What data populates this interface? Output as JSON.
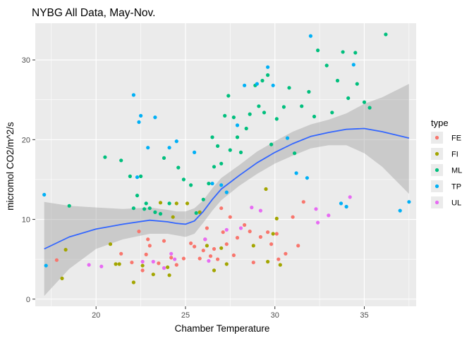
{
  "chart_data": {
    "type": "scatter",
    "title": "NYBG All Data, May-Nov.",
    "xlabel": "Chamber Temperature",
    "ylabel": "micromol CO2/m^2/s",
    "xlim": [
      16.6,
      37.9
    ],
    "ylim": [
      -0.9,
      34.6
    ],
    "x_ticks": [
      20,
      25,
      30,
      35
    ],
    "y_ticks": [
      0,
      10,
      20,
      30
    ],
    "grid": true,
    "panel_background": "#ebebeb",
    "legend": {
      "title": "type",
      "position": "right",
      "entries": [
        {
          "label": "FE",
          "color": "#F8766D"
        },
        {
          "label": "FI",
          "color": "#A3A500"
        },
        {
          "label": "ML",
          "color": "#00BF7D"
        },
        {
          "label": "TP",
          "color": "#00B0F6"
        },
        {
          "label": "UL",
          "color": "#E76BF3"
        }
      ]
    },
    "series": [
      {
        "name": "FE",
        "color": "#F8766D",
        "points": [
          [
            17.8,
            4.9
          ],
          [
            21.4,
            5.7
          ],
          [
            22.0,
            4.6
          ],
          [
            22.4,
            8.5
          ],
          [
            22.6,
            3.6
          ],
          [
            22.8,
            5.6
          ],
          [
            22.9,
            7.5
          ],
          [
            23.0,
            6.7
          ],
          [
            23.5,
            4.5
          ],
          [
            23.8,
            7.3
          ],
          [
            24.2,
            5.2
          ],
          [
            24.5,
            4.3
          ],
          [
            24.9,
            5.1
          ],
          [
            25.3,
            7.0
          ],
          [
            25.5,
            6.6
          ],
          [
            25.8,
            5.1
          ],
          [
            26.0,
            6.1
          ],
          [
            26.1,
            7.5
          ],
          [
            26.2,
            8.9
          ],
          [
            26.4,
            5.4
          ],
          [
            26.6,
            6.3
          ],
          [
            26.8,
            5.0
          ],
          [
            27.0,
            11.4
          ],
          [
            27.1,
            8.4
          ],
          [
            27.3,
            6.9
          ],
          [
            27.5,
            10.3
          ],
          [
            27.7,
            5.5
          ],
          [
            27.9,
            7.7
          ],
          [
            28.3,
            9.3
          ],
          [
            28.6,
            8.5
          ],
          [
            28.8,
            4.6
          ],
          [
            29.2,
            7.8
          ],
          [
            29.6,
            8.4
          ],
          [
            29.8,
            6.9
          ],
          [
            30.1,
            8.2
          ],
          [
            30.2,
            5.0
          ],
          [
            30.6,
            5.7
          ],
          [
            31.0,
            10.3
          ],
          [
            31.3,
            6.7
          ],
          [
            31.6,
            12.2
          ]
        ]
      },
      {
        "name": "FI",
        "color": "#A3A500",
        "points": [
          [
            18.1,
            2.6
          ],
          [
            18.3,
            6.2
          ],
          [
            20.8,
            6.9
          ],
          [
            21.1,
            4.4
          ],
          [
            21.3,
            4.4
          ],
          [
            22.1,
            2.1
          ],
          [
            22.6,
            4.2
          ],
          [
            23.2,
            3.1
          ],
          [
            23.6,
            12.1
          ],
          [
            24.0,
            4.0
          ],
          [
            24.1,
            3.0
          ],
          [
            24.3,
            10.3
          ],
          [
            24.5,
            12.0
          ],
          [
            25.1,
            12.0
          ],
          [
            25.8,
            10.9
          ],
          [
            26.2,
            6.7
          ],
          [
            26.6,
            3.6
          ],
          [
            27.0,
            6.4
          ],
          [
            27.3,
            4.4
          ],
          [
            28.8,
            6.7
          ],
          [
            29.5,
            13.8
          ],
          [
            29.6,
            4.7
          ],
          [
            29.9,
            8.2
          ],
          [
            30.1,
            10.1
          ],
          [
            30.3,
            4.3
          ]
        ]
      },
      {
        "name": "ML",
        "color": "#00BF7D",
        "points": [
          [
            18.5,
            11.7
          ],
          [
            20.5,
            17.8
          ],
          [
            21.4,
            17.4
          ],
          [
            21.9,
            15.4
          ],
          [
            22.1,
            11.4
          ],
          [
            22.3,
            13.0
          ],
          [
            22.5,
            15.4
          ],
          [
            22.7,
            11.3
          ],
          [
            22.8,
            12.0
          ],
          [
            23.0,
            11.4
          ],
          [
            23.3,
            10.9
          ],
          [
            23.6,
            10.7
          ],
          [
            23.8,
            17.7
          ],
          [
            24.1,
            12.0
          ],
          [
            24.6,
            16.5
          ],
          [
            24.9,
            15.0
          ],
          [
            25.3,
            14.3
          ],
          [
            25.6,
            10.8
          ],
          [
            26.0,
            12.5
          ],
          [
            26.3,
            14.5
          ],
          [
            26.5,
            20.3
          ],
          [
            26.6,
            16.6
          ],
          [
            26.8,
            19.2
          ],
          [
            27.0,
            17.0
          ],
          [
            27.2,
            23.0
          ],
          [
            27.4,
            25.5
          ],
          [
            27.5,
            18.7
          ],
          [
            27.7,
            22.8
          ],
          [
            27.9,
            20.3
          ],
          [
            28.1,
            18.4
          ],
          [
            28.4,
            21.4
          ],
          [
            28.6,
            23.2
          ],
          [
            28.9,
            26.8
          ],
          [
            29.1,
            24.2
          ],
          [
            29.3,
            27.4
          ],
          [
            29.4,
            23.4
          ],
          [
            29.6,
            28.1
          ],
          [
            29.8,
            19.4
          ],
          [
            30.1,
            22.6
          ],
          [
            30.5,
            24.1
          ],
          [
            30.8,
            26.5
          ],
          [
            31.1,
            18.3
          ],
          [
            31.5,
            24.2
          ],
          [
            31.9,
            26.0
          ],
          [
            32.2,
            22.9
          ],
          [
            32.4,
            31.2
          ],
          [
            32.9,
            29.3
          ],
          [
            33.2,
            23.4
          ],
          [
            33.5,
            27.4
          ],
          [
            33.8,
            31.0
          ],
          [
            34.1,
            25.2
          ],
          [
            34.5,
            30.9
          ],
          [
            34.6,
            27.0
          ],
          [
            35.0,
            24.7
          ],
          [
            35.3,
            24.0
          ],
          [
            36.2,
            33.2
          ]
        ]
      },
      {
        "name": "TP",
        "color": "#00B0F6",
        "points": [
          [
            17.1,
            13.1
          ],
          [
            17.2,
            4.2
          ],
          [
            22.1,
            25.6
          ],
          [
            22.4,
            22.2
          ],
          [
            22.5,
            23.0
          ],
          [
            22.9,
            19.0
          ],
          [
            23.3,
            22.8
          ],
          [
            22.3,
            15.3
          ],
          [
            24.1,
            19.0
          ],
          [
            24.5,
            19.8
          ],
          [
            25.5,
            18.4
          ],
          [
            26.5,
            14.5
          ],
          [
            27.0,
            14.3
          ],
          [
            27.3,
            13.4
          ],
          [
            27.9,
            21.8
          ],
          [
            28.3,
            26.8
          ],
          [
            29.0,
            27.0
          ],
          [
            29.6,
            29.1
          ],
          [
            29.9,
            26.8
          ],
          [
            30.7,
            20.2
          ],
          [
            31.2,
            15.8
          ],
          [
            31.8,
            15.2
          ],
          [
            32.0,
            33.0
          ],
          [
            33.7,
            12.0
          ],
          [
            34.0,
            11.6
          ],
          [
            34.4,
            29.4
          ],
          [
            37.0,
            11.1
          ],
          [
            37.5,
            12.2
          ]
        ]
      },
      {
        "name": "UL",
        "color": "#E76BF3",
        "points": [
          [
            19.6,
            4.3
          ],
          [
            20.3,
            4.1
          ],
          [
            22.6,
            4.7
          ],
          [
            23.2,
            4.7
          ],
          [
            23.8,
            3.9
          ],
          [
            24.2,
            5.7
          ],
          [
            24.4,
            5.0
          ],
          [
            26.1,
            7.5
          ],
          [
            26.3,
            4.8
          ],
          [
            27.3,
            8.7
          ],
          [
            28.1,
            8.9
          ],
          [
            28.7,
            11.5
          ],
          [
            29.2,
            11.1
          ],
          [
            32.3,
            11.3
          ],
          [
            32.4,
            9.6
          ],
          [
            33.0,
            10.5
          ],
          [
            34.2,
            12.8
          ]
        ]
      }
    ],
    "smooth": {
      "color": "#3366FF",
      "band_color": "#999999",
      "x": [
        17.1,
        18.5,
        20.0,
        21.5,
        23.0,
        24.0,
        24.5,
        25.0,
        25.5,
        26.0,
        26.5,
        27.0,
        28.0,
        29.0,
        30.0,
        31.0,
        32.0,
        33.0,
        34.0,
        35.0,
        36.0,
        37.5
      ],
      "y": [
        6.3,
        7.8,
        8.8,
        9.4,
        9.9,
        9.7,
        9.5,
        9.4,
        9.8,
        11.0,
        12.5,
        13.8,
        15.5,
        17.1,
        18.4,
        19.5,
        20.4,
        20.9,
        21.3,
        21.4,
        21.0,
        20.2
      ],
      "lower": [
        0.4,
        3.8,
        6.3,
        7.5,
        8.2,
        8.2,
        8.0,
        7.8,
        8.2,
        9.6,
        11.1,
        12.4,
        14.2,
        15.7,
        17.0,
        18.0,
        18.9,
        19.3,
        19.3,
        18.3,
        16.6,
        13.2
      ],
      "upper": [
        12.2,
        11.7,
        11.5,
        11.3,
        11.5,
        11.2,
        11.0,
        11.0,
        11.4,
        12.4,
        13.9,
        15.2,
        16.8,
        18.5,
        19.8,
        21.0,
        21.9,
        22.5,
        23.3,
        24.5,
        25.3,
        27.0
      ]
    }
  }
}
